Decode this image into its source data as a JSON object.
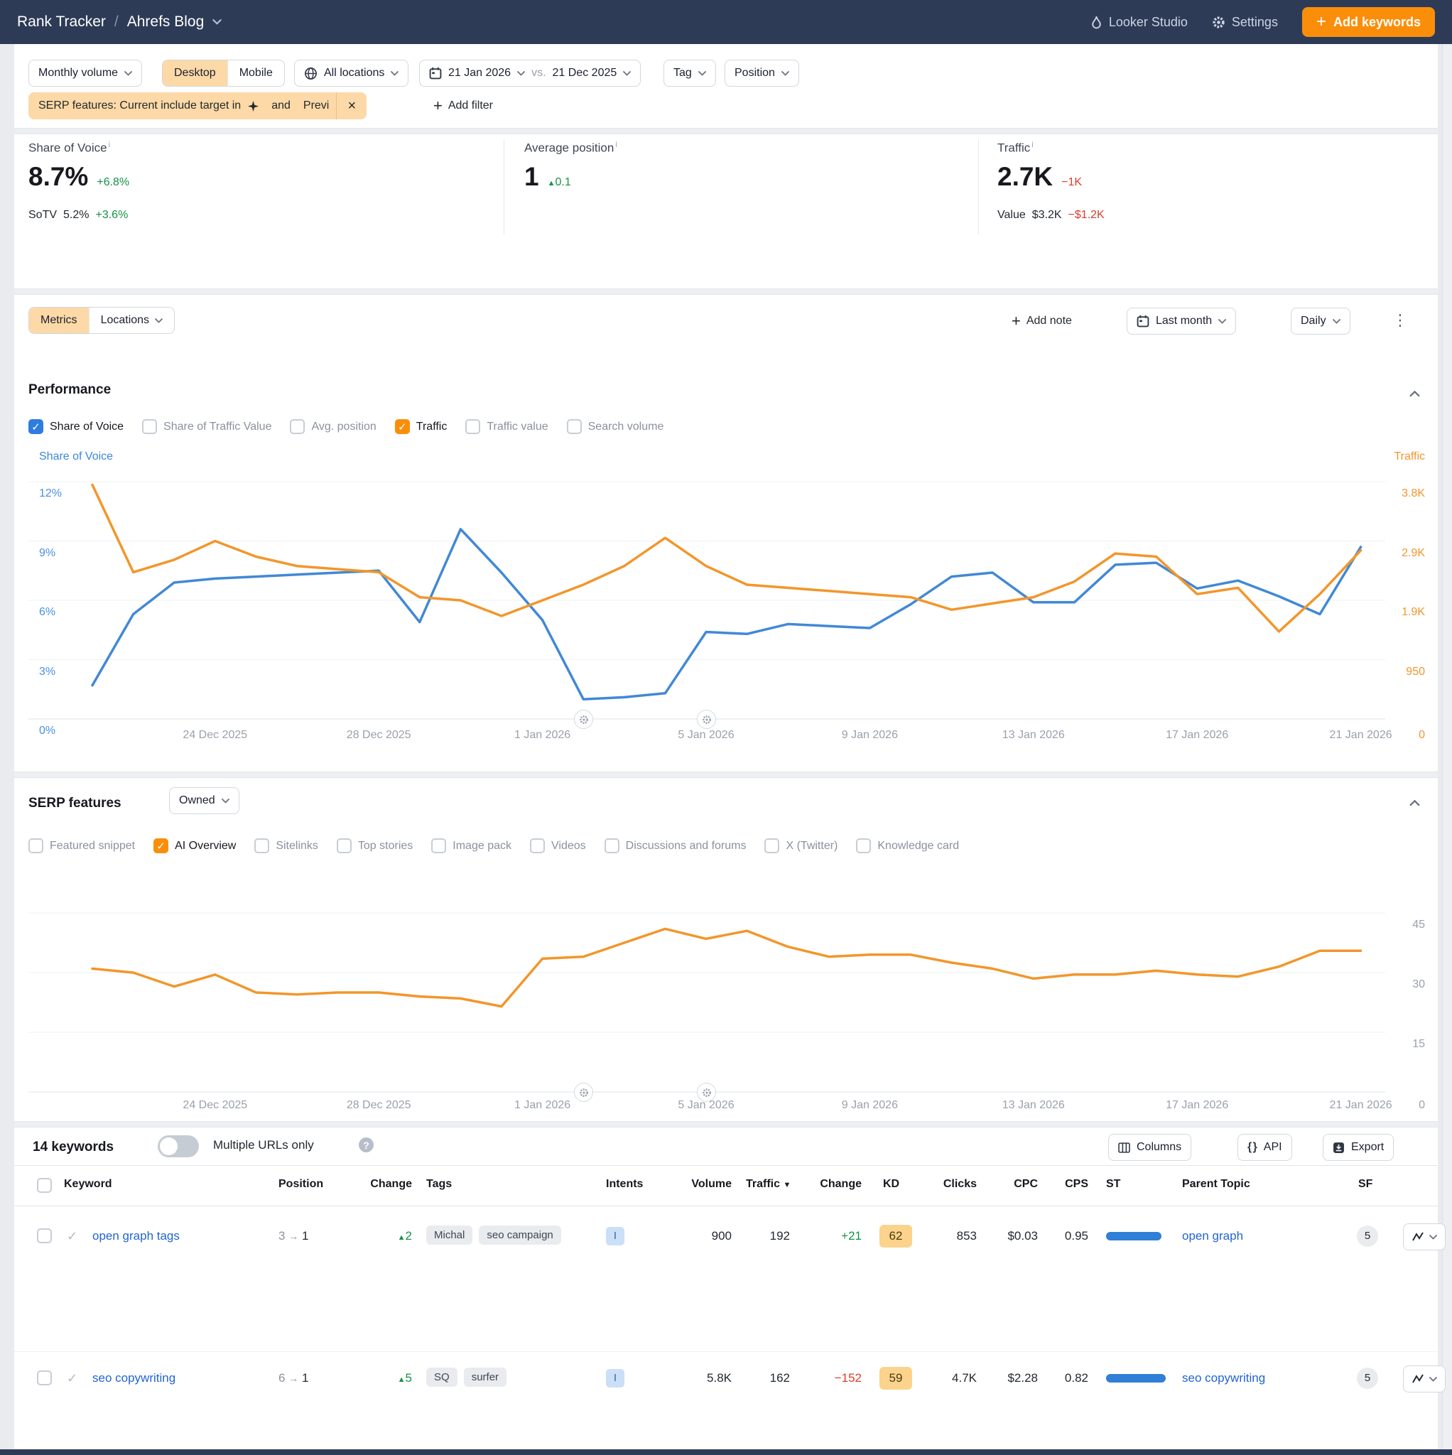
{
  "colors": {
    "nav_bg": "#2d3b57",
    "accent_orange": "#fa8e0a",
    "selected_peach": "#fcd9a6",
    "chart_blue": "#4288d5",
    "chart_orange": "#f2962b",
    "positive_green": "#149247",
    "negative_red": "#dd3b2a",
    "link_blue": "#2164d4",
    "kd_pill_bg": "#fcd38c",
    "intent_pill_bg": "#cbdff6",
    "st_bar_blue": "#2f80d6"
  },
  "nav": {
    "breadcrumb": {
      "root": "Rank Tracker",
      "separator": "/",
      "project": "Ahrefs Blog"
    },
    "looker_studio_label": "Looker Studio",
    "settings_label": "Settings",
    "add_keywords_label": "Add keywords"
  },
  "filters": {
    "volume_mode_label": "Monthly volume",
    "device": {
      "desktop": "Desktop",
      "mobile": "Mobile",
      "active": "Desktop"
    },
    "locations_label": "All locations",
    "date_compare": {
      "current": "21 Jan 2026",
      "vs": "vs.",
      "previous": "21 Dec 2025"
    },
    "tag_label": "Tag",
    "position_label": "Position",
    "serp_chip": {
      "text": "SERP features: Current include target in",
      "and": "and",
      "previous": "Previ"
    },
    "add_filter_label": "Add filter"
  },
  "scorecards": {
    "share_of_voice": {
      "label": "Share of Voice",
      "value": "8.7%",
      "delta": "+6.8%",
      "sub_label": "SoTV",
      "sub_value": "5.2%",
      "sub_delta": "+3.6%"
    },
    "average_position": {
      "label": "Average position",
      "value": "1",
      "delta_arrow": "▲",
      "delta": "0.1"
    },
    "traffic": {
      "label": "Traffic",
      "value": "2.7K",
      "delta": "−1K",
      "sub_label": "Value",
      "sub_value": "$3.2K",
      "sub_delta": "−$1.2K"
    }
  },
  "controls": {
    "metrics_tab": "Metrics",
    "locations_tab": "Locations",
    "add_note_label": "Add note",
    "date_range_label": "Last month",
    "granularity_label": "Daily"
  },
  "performance_section": {
    "title": "Performance",
    "metric_toggles": [
      {
        "label": "Share of Voice",
        "checked": true,
        "check_color": "#2e7ce0"
      },
      {
        "label": "Share of Traffic Value",
        "checked": false
      },
      {
        "label": "Avg. position",
        "checked": false
      },
      {
        "label": "Traffic",
        "checked": true,
        "check_color": "#fa8e0a"
      },
      {
        "label": "Traffic value",
        "checked": false
      },
      {
        "label": "Search volume",
        "checked": false
      }
    ]
  },
  "serp_section": {
    "title": "SERP features",
    "owned_label": "Owned",
    "feature_toggles": [
      {
        "label": "Featured snippet",
        "checked": false
      },
      {
        "label": "AI Overview",
        "checked": true,
        "check_color": "#fa8e0a"
      },
      {
        "label": "Sitelinks",
        "checked": false
      },
      {
        "label": "Top stories",
        "checked": false
      },
      {
        "label": "Image pack",
        "checked": false
      },
      {
        "label": "Videos",
        "checked": false
      },
      {
        "label": "Discussions and forums",
        "checked": false
      },
      {
        "label": "X (Twitter)",
        "checked": false
      },
      {
        "label": "Knowledge card",
        "checked": false
      }
    ]
  },
  "chart_data": [
    {
      "type": "line",
      "title": "Performance — Share of Voice vs Traffic",
      "grid": "horizontal",
      "legend_position": "none",
      "x_labels": [
        "21 Dec 2025",
        "22 Dec 2025",
        "23 Dec 2025",
        "24 Dec 2025",
        "25 Dec 2025",
        "26 Dec 2025",
        "27 Dec 2025",
        "28 Dec 2025",
        "29 Dec 2025",
        "30 Dec 2025",
        "31 Dec 2025",
        "1 Jan 2026",
        "2 Jan 2026",
        "3 Jan 2026",
        "4 Jan 2026",
        "5 Jan 2026",
        "6 Jan 2026",
        "7 Jan 2026",
        "8 Jan 2026",
        "9 Jan 2026",
        "10 Jan 2026",
        "11 Jan 2026",
        "12 Jan 2026",
        "13 Jan 2026",
        "14 Jan 2026",
        "15 Jan 2026",
        "16 Jan 2026",
        "17 Jan 2026",
        "18 Jan 2026",
        "19 Jan 2026",
        "20 Jan 2026",
        "21 Jan 2026"
      ],
      "x_axis_ticks": [
        "24 Dec 2025",
        "28 Dec 2025",
        "1 Jan 2026",
        "5 Jan 2026",
        "9 Jan 2026",
        "13 Jan 2026",
        "17 Jan 2026",
        "21 Jan 2026"
      ],
      "left_axis": {
        "title": "Share of Voice",
        "unit": "%",
        "range": [
          0,
          12
        ],
        "ticks": [
          "12%",
          "9%",
          "6%",
          "3%",
          "0%"
        ],
        "color": "#4a90e2"
      },
      "right_axis": {
        "title": "Traffic",
        "range": [
          0,
          3800
        ],
        "ticks": [
          "3.8K",
          "2.9K",
          "1.9K",
          "950",
          "0"
        ],
        "color": "#f2962b"
      },
      "note_markers_on_dates": [
        "2 Jan 2026",
        "5 Jan 2026"
      ],
      "series": [
        {
          "name": "Share of Voice",
          "axis": "left",
          "color": "#4288d5",
          "values": [
            1.7,
            5.3,
            6.9,
            7.1,
            7.2,
            7.3,
            7.4,
            7.5,
            4.9,
            9.6,
            7.4,
            5.0,
            1.0,
            1.1,
            1.3,
            4.4,
            4.3,
            4.8,
            4.7,
            4.6,
            5.8,
            7.2,
            7.4,
            5.9,
            5.9,
            7.8,
            7.9,
            6.6,
            7.0,
            6.2,
            5.3,
            8.7
          ]
        },
        {
          "name": "Traffic",
          "axis": "right",
          "color": "#f2962b",
          "values": [
            3750,
            2350,
            2550,
            2850,
            2600,
            2450,
            2400,
            2350,
            1950,
            1900,
            1650,
            1900,
            2150,
            2450,
            2900,
            2450,
            2150,
            2100,
            2050,
            2000,
            1950,
            1750,
            1850,
            1950,
            2200,
            2650,
            2600,
            2000,
            2100,
            1400,
            2000,
            2700
          ]
        }
      ]
    },
    {
      "type": "line",
      "title": "SERP features — AI Overview (Owned)",
      "grid": "horizontal",
      "legend_position": "none",
      "x_labels": [
        "21 Dec 2025",
        "22 Dec 2025",
        "23 Dec 2025",
        "24 Dec 2025",
        "25 Dec 2025",
        "26 Dec 2025",
        "27 Dec 2025",
        "28 Dec 2025",
        "29 Dec 2025",
        "30 Dec 2025",
        "31 Dec 2025",
        "1 Jan 2026",
        "2 Jan 2026",
        "3 Jan 2026",
        "4 Jan 2026",
        "5 Jan 2026",
        "6 Jan 2026",
        "7 Jan 2026",
        "8 Jan 2026",
        "9 Jan 2026",
        "10 Jan 2026",
        "11 Jan 2026",
        "12 Jan 2026",
        "13 Jan 2026",
        "14 Jan 2026",
        "15 Jan 2026",
        "16 Jan 2026",
        "17 Jan 2026",
        "18 Jan 2026",
        "19 Jan 2026",
        "20 Jan 2026",
        "21 Jan 2026"
      ],
      "x_axis_ticks": [
        "24 Dec 2025",
        "28 Dec 2025",
        "1 Jan 2026",
        "5 Jan 2026",
        "9 Jan 2026",
        "13 Jan 2026",
        "17 Jan 2026",
        "21 Jan 2026"
      ],
      "right_axis": {
        "title": "",
        "range": [
          0,
          45
        ],
        "ticks": [
          "45",
          "30",
          "15",
          "0"
        ],
        "color": "#9aa0ab"
      },
      "note_markers_on_dates": [
        "2 Jan 2026",
        "5 Jan 2026"
      ],
      "series": [
        {
          "name": "AI Overview",
          "axis": "right",
          "color": "#f2962b",
          "values": [
            31,
            30,
            26.5,
            29.5,
            25,
            24.5,
            25,
            25,
            24,
            23.5,
            21.5,
            33.5,
            34,
            37.5,
            41,
            38.5,
            40.5,
            36.5,
            34,
            34.5,
            34.5,
            32.5,
            31,
            28.5,
            29.5,
            29.5,
            30.5,
            29.5,
            29,
            31.5,
            35.5,
            35.5
          ]
        }
      ]
    }
  ],
  "table": {
    "count_label": "14 keywords",
    "toggle": {
      "label": "Multiple URLs only",
      "on": false
    },
    "buttons": {
      "columns": "Columns",
      "api": "API",
      "export": "Export"
    },
    "headers": [
      "Keyword",
      "Position",
      "Change",
      "Tags",
      "Intents",
      "Volume",
      "Traffic",
      "Change",
      "KD",
      "Clicks",
      "CPC",
      "CPS",
      "ST",
      "Parent Topic",
      "SF"
    ],
    "sorted_by": "Traffic",
    "rows": [
      {
        "keyword": "open graph tags",
        "position_from": "3",
        "position_arrow": "→",
        "position_to": "1",
        "change_arrow": "▲",
        "change": "2",
        "tags": [
          "Michal",
          "seo campaign"
        ],
        "intents": [
          "I"
        ],
        "volume": "900",
        "traffic": "192",
        "traffic_change": "+21",
        "traffic_change_dir": "up",
        "kd": "62",
        "clicks": "853",
        "cpc": "$0.03",
        "cps": "0.95",
        "st_bar_width": 78,
        "parent_topic": "open graph",
        "sf": "5"
      },
      {
        "keyword": "seo copywriting",
        "position_from": "6",
        "position_arrow": "→",
        "position_to": "1",
        "change_arrow": "▲",
        "change": "5",
        "tags": [
          "SQ",
          "surfer"
        ],
        "intents": [
          "I"
        ],
        "volume": "5.8K",
        "traffic": "162",
        "traffic_change": "−152",
        "traffic_change_dir": "down",
        "kd": "59",
        "clicks": "4.7K",
        "cpc": "$2.28",
        "cps": "0.82",
        "st_bar_width": 84,
        "parent_topic": "seo copywriting",
        "sf": "5"
      }
    ]
  }
}
